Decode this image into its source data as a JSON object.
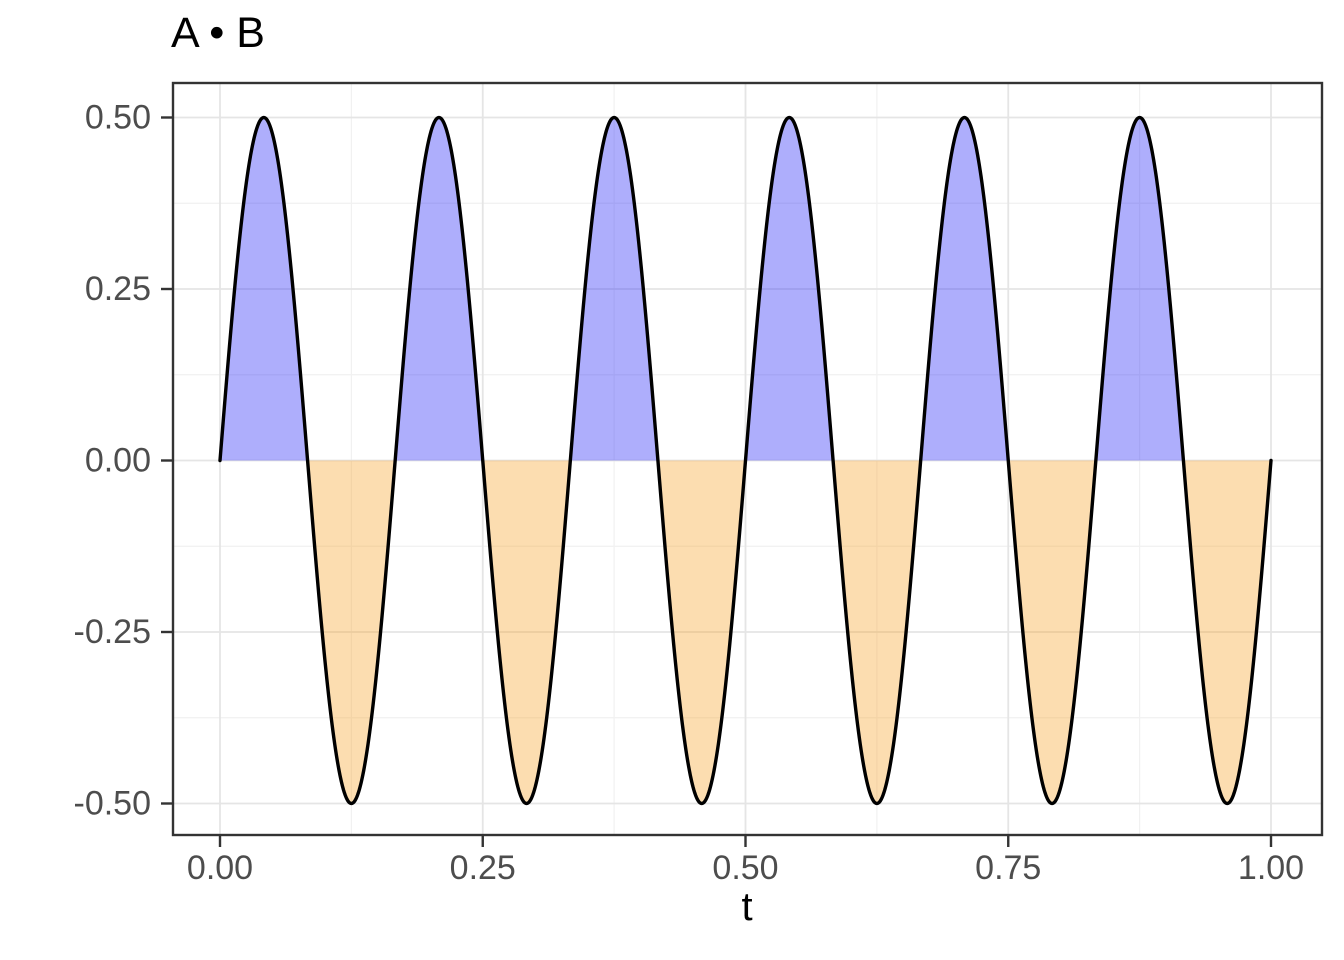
{
  "title": "A • B",
  "chart_data": {
    "type": "area",
    "title": "A • B",
    "xlabel": "t",
    "ylabel": "",
    "grid": true,
    "legend": false,
    "x_domain": [
      0,
      1
    ],
    "ylim_ticks": [
      -0.5,
      0.5
    ],
    "x_ticks": [
      {
        "value": 0.0,
        "label": "0.00"
      },
      {
        "value": 0.25,
        "label": "0.25"
      },
      {
        "value": 0.5,
        "label": "0.50"
      },
      {
        "value": 0.75,
        "label": "0.75"
      },
      {
        "value": 1.0,
        "label": "1.00"
      }
    ],
    "y_ticks": [
      {
        "value": 0.5,
        "label": "0.50"
      },
      {
        "value": 0.25,
        "label": "0.25"
      },
      {
        "value": 0.0,
        "label": "0.00"
      },
      {
        "value": -0.25,
        "label": "-0.25"
      },
      {
        "value": -0.5,
        "label": "-0.50"
      }
    ],
    "x_minor_gridlines": [
      0.125,
      0.375,
      0.625,
      0.875
    ],
    "y_minor_gridlines": [
      0.375,
      0.125,
      -0.125,
      -0.375
    ],
    "series": {
      "name": "A·B",
      "expression": "0.5·sin(2π·6·t)",
      "amplitude": 0.5,
      "frequency_cycles": 6,
      "phase": 0,
      "t_start": 0,
      "t_end": 1
    },
    "key_points": {
      "peaks_t": [
        0.0417,
        0.2083,
        0.375,
        0.5417,
        0.7083,
        0.875
      ],
      "peak_y": 0.5,
      "troughs_t": [
        0.125,
        0.2917,
        0.4583,
        0.625,
        0.7917,
        0.9583
      ],
      "trough_y": -0.5,
      "zero_crossings_t": [
        0,
        0.0833,
        0.1667,
        0.25,
        0.3333,
        0.4167,
        0.5,
        0.5833,
        0.6667,
        0.75,
        0.8333,
        0.9167,
        1
      ]
    },
    "fill_rule": "positive lobes filled blue, negative lobes filled orange",
    "style": {
      "background": "#FFFFFF",
      "panel_background": "#FFFFFF",
      "grid_major_color": "#E5E5E5",
      "grid_minor_color": "#F1F1F1",
      "panel_border_color": "#333333",
      "tick_color": "#333333",
      "tick_label_color": "#4D4D4D",
      "title_color": "#000000",
      "axis_title_color": "#000000",
      "line_color": "#000000",
      "fill_positive": "rgba(43,43,246,0.38)",
      "fill_negative": "rgba(247,157,30,0.35)"
    }
  }
}
